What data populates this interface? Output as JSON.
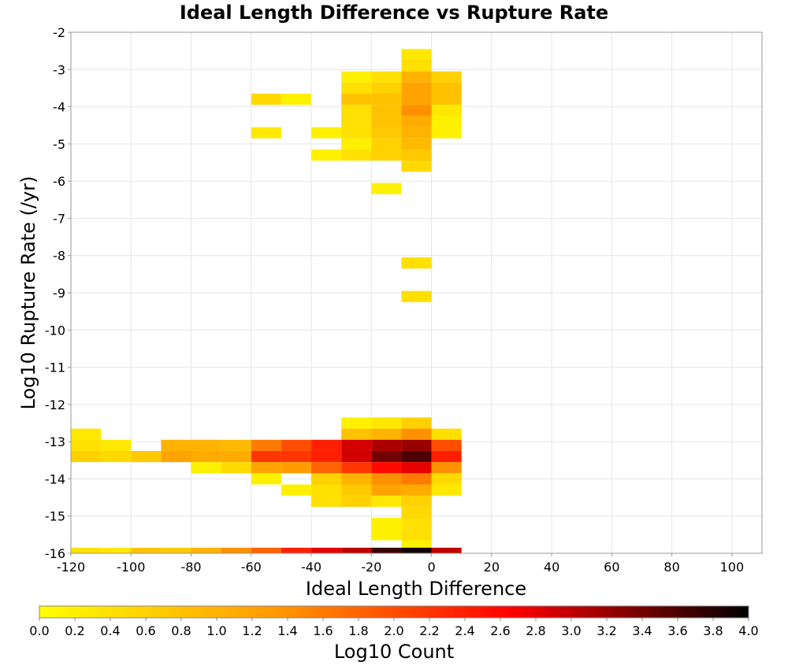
{
  "chart_data": {
    "type": "heatmap",
    "title": "Ideal Length Difference vs Rupture Rate",
    "xlabel": "Ideal Length Difference",
    "ylabel": "Log10 Rupture Rate (/yr)",
    "xlim": [
      -120,
      110
    ],
    "ylim": [
      -16,
      -2
    ],
    "x_ticks": [
      "-120",
      "-100",
      "-80",
      "-60",
      "-40",
      "-20",
      "0",
      "20",
      "40",
      "60",
      "80",
      "100"
    ],
    "y_ticks": [
      "-2",
      "-3",
      "-4",
      "-5",
      "-6",
      "-7",
      "-8",
      "-9",
      "-10",
      "-11",
      "-12",
      "-13",
      "-14",
      "-15",
      "-16"
    ],
    "grid": true,
    "x_bin_width": 10,
    "y_bin_height": 0.3,
    "colorbar": {
      "label": "Log10 Count",
      "min": 0.0,
      "max": 4.0,
      "ticks": [
        "0.0",
        "0.2",
        "0.4",
        "0.6",
        "0.8",
        "1.0",
        "1.2",
        "1.4",
        "1.6",
        "1.8",
        "2.0",
        "2.2",
        "2.4",
        "2.6",
        "2.8",
        "3.0",
        "3.2",
        "3.4",
        "3.6",
        "3.8",
        "4.0"
      ],
      "colors": [
        "#ffff00",
        "#ff9900",
        "#ff0000",
        "#000000"
      ]
    },
    "cells": [
      {
        "x": -10,
        "y": -2.6,
        "v": 0.3
      },
      {
        "x": -10,
        "y": -2.9,
        "v": 0.4
      },
      {
        "x": -30,
        "y": -3.2,
        "v": 0.2
      },
      {
        "x": -20,
        "y": -3.2,
        "v": 0.4
      },
      {
        "x": -10,
        "y": -3.2,
        "v": 1.0
      },
      {
        "x": 0,
        "y": -3.2,
        "v": 0.6
      },
      {
        "x": -30,
        "y": -3.5,
        "v": 0.4
      },
      {
        "x": -20,
        "y": -3.5,
        "v": 0.6
      },
      {
        "x": -10,
        "y": -3.5,
        "v": 1.2
      },
      {
        "x": 0,
        "y": -3.5,
        "v": 0.8
      },
      {
        "x": -60,
        "y": -3.8,
        "v": 0.5
      },
      {
        "x": -50,
        "y": -3.8,
        "v": 0.2
      },
      {
        "x": -30,
        "y": -3.8,
        "v": 0.8
      },
      {
        "x": -20,
        "y": -3.8,
        "v": 0.8
      },
      {
        "x": -10,
        "y": -3.8,
        "v": 1.2
      },
      {
        "x": 0,
        "y": -3.8,
        "v": 0.8
      },
      {
        "x": -30,
        "y": -4.1,
        "v": 0.4
      },
      {
        "x": -20,
        "y": -4.1,
        "v": 0.8
      },
      {
        "x": -10,
        "y": -4.1,
        "v": 1.4
      },
      {
        "x": 0,
        "y": -4.1,
        "v": 0.3
      },
      {
        "x": -30,
        "y": -4.4,
        "v": 0.4
      },
      {
        "x": -20,
        "y": -4.4,
        "v": 0.8
      },
      {
        "x": -10,
        "y": -4.4,
        "v": 1.1
      },
      {
        "x": 0,
        "y": -4.4,
        "v": 0.2
      },
      {
        "x": -60,
        "y": -4.7,
        "v": 0.3
      },
      {
        "x": -40,
        "y": -4.7,
        "v": 0.2
      },
      {
        "x": -30,
        "y": -4.7,
        "v": 0.4
      },
      {
        "x": -20,
        "y": -4.7,
        "v": 0.7
      },
      {
        "x": -10,
        "y": -4.7,
        "v": 1.0
      },
      {
        "x": 0,
        "y": -4.7,
        "v": 0.2
      },
      {
        "x": -30,
        "y": -5.0,
        "v": 0.2
      },
      {
        "x": -20,
        "y": -5.0,
        "v": 0.6
      },
      {
        "x": -10,
        "y": -5.0,
        "v": 0.9
      },
      {
        "x": -40,
        "y": -5.3,
        "v": 0.2
      },
      {
        "x": -30,
        "y": -5.3,
        "v": 0.4
      },
      {
        "x": -20,
        "y": -5.3,
        "v": 0.6
      },
      {
        "x": -10,
        "y": -5.3,
        "v": 0.7
      },
      {
        "x": -10,
        "y": -5.6,
        "v": 0.5
      },
      {
        "x": -20,
        "y": -6.2,
        "v": 0.2
      },
      {
        "x": -10,
        "y": -8.2,
        "v": 0.4
      },
      {
        "x": -10,
        "y": -9.1,
        "v": 0.4
      },
      {
        "x": -30,
        "y": -12.5,
        "v": 0.2
      },
      {
        "x": -20,
        "y": -12.5,
        "v": 0.3
      },
      {
        "x": -10,
        "y": -12.5,
        "v": 0.6
      },
      {
        "x": -120,
        "y": -12.8,
        "v": 0.3
      },
      {
        "x": -30,
        "y": -12.8,
        "v": 0.8
      },
      {
        "x": -20,
        "y": -12.8,
        "v": 1.0
      },
      {
        "x": -10,
        "y": -12.8,
        "v": 1.4
      },
      {
        "x": 0,
        "y": -12.8,
        "v": 0.4
      },
      {
        "x": -120,
        "y": -13.1,
        "v": 0.4
      },
      {
        "x": -110,
        "y": -13.1,
        "v": 0.3
      },
      {
        "x": -90,
        "y": -13.1,
        "v": 1.0
      },
      {
        "x": -80,
        "y": -13.1,
        "v": 1.0
      },
      {
        "x": -70,
        "y": -13.1,
        "v": 0.9
      },
      {
        "x": -60,
        "y": -13.1,
        "v": 1.6
      },
      {
        "x": -50,
        "y": -13.1,
        "v": 2.0
      },
      {
        "x": -40,
        "y": -13.1,
        "v": 2.4
      },
      {
        "x": -30,
        "y": -13.1,
        "v": 2.9
      },
      {
        "x": -20,
        "y": -13.1,
        "v": 3.1
      },
      {
        "x": -10,
        "y": -13.1,
        "v": 3.2
      },
      {
        "x": 0,
        "y": -13.1,
        "v": 2.0
      },
      {
        "x": -120,
        "y": -13.4,
        "v": 0.6
      },
      {
        "x": -110,
        "y": -13.4,
        "v": 0.5
      },
      {
        "x": -100,
        "y": -13.4,
        "v": 0.7
      },
      {
        "x": -90,
        "y": -13.4,
        "v": 1.2
      },
      {
        "x": -80,
        "y": -13.4,
        "v": 1.1
      },
      {
        "x": -70,
        "y": -13.4,
        "v": 1.1
      },
      {
        "x": -60,
        "y": -13.4,
        "v": 2.2
      },
      {
        "x": -50,
        "y": -13.4,
        "v": 2.2
      },
      {
        "x": -40,
        "y": -13.4,
        "v": 2.4
      },
      {
        "x": -30,
        "y": -13.4,
        "v": 2.9
      },
      {
        "x": -20,
        "y": -13.4,
        "v": 3.4
      },
      {
        "x": -10,
        "y": -13.4,
        "v": 3.6
      },
      {
        "x": 0,
        "y": -13.4,
        "v": 2.4
      },
      {
        "x": -80,
        "y": -13.7,
        "v": 0.2
      },
      {
        "x": -70,
        "y": -13.7,
        "v": 0.5
      },
      {
        "x": -60,
        "y": -13.7,
        "v": 1.2
      },
      {
        "x": -50,
        "y": -13.7,
        "v": 1.3
      },
      {
        "x": -40,
        "y": -13.7,
        "v": 1.8
      },
      {
        "x": -30,
        "y": -13.7,
        "v": 2.2
      },
      {
        "x": -20,
        "y": -13.7,
        "v": 2.6
      },
      {
        "x": -10,
        "y": -13.7,
        "v": 2.8
      },
      {
        "x": 0,
        "y": -13.7,
        "v": 1.4
      },
      {
        "x": -60,
        "y": -14.0,
        "v": 0.2
      },
      {
        "x": -40,
        "y": -14.0,
        "v": 0.6
      },
      {
        "x": -30,
        "y": -14.0,
        "v": 1.0
      },
      {
        "x": -20,
        "y": -14.0,
        "v": 1.4
      },
      {
        "x": -10,
        "y": -14.0,
        "v": 1.6
      },
      {
        "x": 0,
        "y": -14.0,
        "v": 0.5
      },
      {
        "x": -50,
        "y": -14.3,
        "v": 0.2
      },
      {
        "x": -40,
        "y": -14.3,
        "v": 0.4
      },
      {
        "x": -30,
        "y": -14.3,
        "v": 0.7
      },
      {
        "x": -20,
        "y": -14.3,
        "v": 1.2
      },
      {
        "x": -10,
        "y": -14.3,
        "v": 1.1
      },
      {
        "x": 0,
        "y": -14.3,
        "v": 0.3
      },
      {
        "x": -40,
        "y": -14.6,
        "v": 0.4
      },
      {
        "x": -30,
        "y": -14.6,
        "v": 0.6
      },
      {
        "x": -20,
        "y": -14.6,
        "v": 0.3
      },
      {
        "x": -10,
        "y": -14.6,
        "v": 0.6
      },
      {
        "x": -10,
        "y": -14.9,
        "v": 0.5
      },
      {
        "x": -20,
        "y": -15.2,
        "v": 0.2
      },
      {
        "x": -10,
        "y": -15.2,
        "v": 0.4
      },
      {
        "x": -20,
        "y": -15.5,
        "v": 0.2
      },
      {
        "x": -10,
        "y": -15.5,
        "v": 0.4
      },
      {
        "x": -10,
        "y": -15.8,
        "v": 0.2
      },
      {
        "x": -120,
        "y": -16.0,
        "v": 0.4
      },
      {
        "x": -110,
        "y": -16.0,
        "v": 0.3
      },
      {
        "x": -100,
        "y": -16.0,
        "v": 0.8
      },
      {
        "x": -90,
        "y": -16.0,
        "v": 0.7
      },
      {
        "x": -80,
        "y": -16.0,
        "v": 1.0
      },
      {
        "x": -70,
        "y": -16.0,
        "v": 1.4
      },
      {
        "x": -60,
        "y": -16.0,
        "v": 1.8
      },
      {
        "x": -50,
        "y": -16.0,
        "v": 2.4
      },
      {
        "x": -40,
        "y": -16.0,
        "v": 2.8
      },
      {
        "x": -30,
        "y": -16.0,
        "v": 3.0
      },
      {
        "x": -20,
        "y": -16.0,
        "v": 3.7
      },
      {
        "x": -10,
        "y": -16.0,
        "v": 3.9
      },
      {
        "x": 0,
        "y": -16.0,
        "v": 3.0
      }
    ]
  }
}
